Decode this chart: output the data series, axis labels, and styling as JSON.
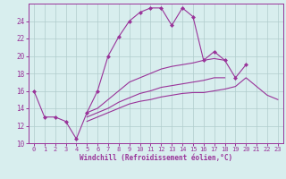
{
  "xlabel": "Windchill (Refroidissement éolien,°C)",
  "background_color": "#d8eeee",
  "grid_color": "#b0cccc",
  "line_color": "#993399",
  "xmin": -0.5,
  "xmax": 23.5,
  "ymin": 10,
  "ymax": 26,
  "yticks": [
    10,
    12,
    14,
    16,
    18,
    20,
    22,
    24
  ],
  "xticks": [
    0,
    1,
    2,
    3,
    4,
    5,
    6,
    7,
    8,
    9,
    10,
    11,
    12,
    13,
    14,
    15,
    16,
    17,
    18,
    19,
    20,
    21,
    22,
    23
  ],
  "line1_x": [
    0,
    1,
    2,
    3,
    4,
    5,
    6,
    7,
    8,
    9,
    10,
    11,
    12,
    13,
    14,
    15,
    16,
    17,
    18,
    19,
    20
  ],
  "line1_y": [
    16.0,
    13.0,
    13.0,
    12.5,
    10.5,
    13.5,
    16.0,
    20.0,
    22.2,
    24.0,
    25.0,
    25.5,
    25.5,
    23.5,
    25.5,
    24.5,
    19.5,
    20.5,
    19.5,
    17.5,
    19.0
  ],
  "line2_x": [
    5,
    6,
    7,
    8,
    9,
    10,
    11,
    12,
    13,
    14,
    15,
    16,
    17,
    18
  ],
  "line2_y": [
    13.5,
    14.0,
    15.0,
    16.0,
    17.0,
    17.5,
    18.0,
    18.5,
    18.8,
    19.0,
    19.2,
    19.5,
    19.7,
    19.5
  ],
  "line3_x": [
    5,
    6,
    7,
    8,
    9,
    10,
    11,
    12,
    13,
    14,
    15,
    16,
    17,
    18
  ],
  "line3_y": [
    13.0,
    13.5,
    14.0,
    14.7,
    15.2,
    15.7,
    16.0,
    16.4,
    16.6,
    16.8,
    17.0,
    17.2,
    17.5,
    17.5
  ],
  "line4_x": [
    5,
    6,
    7,
    8,
    9,
    10,
    11,
    12,
    13,
    14,
    15,
    16,
    17,
    18,
    19,
    20,
    21,
    22,
    23
  ],
  "line4_y": [
    12.5,
    13.0,
    13.5,
    14.0,
    14.5,
    14.8,
    15.0,
    15.3,
    15.5,
    15.7,
    15.8,
    15.8,
    16.0,
    16.2,
    16.5,
    17.5,
    16.5,
    15.5,
    15.0
  ]
}
